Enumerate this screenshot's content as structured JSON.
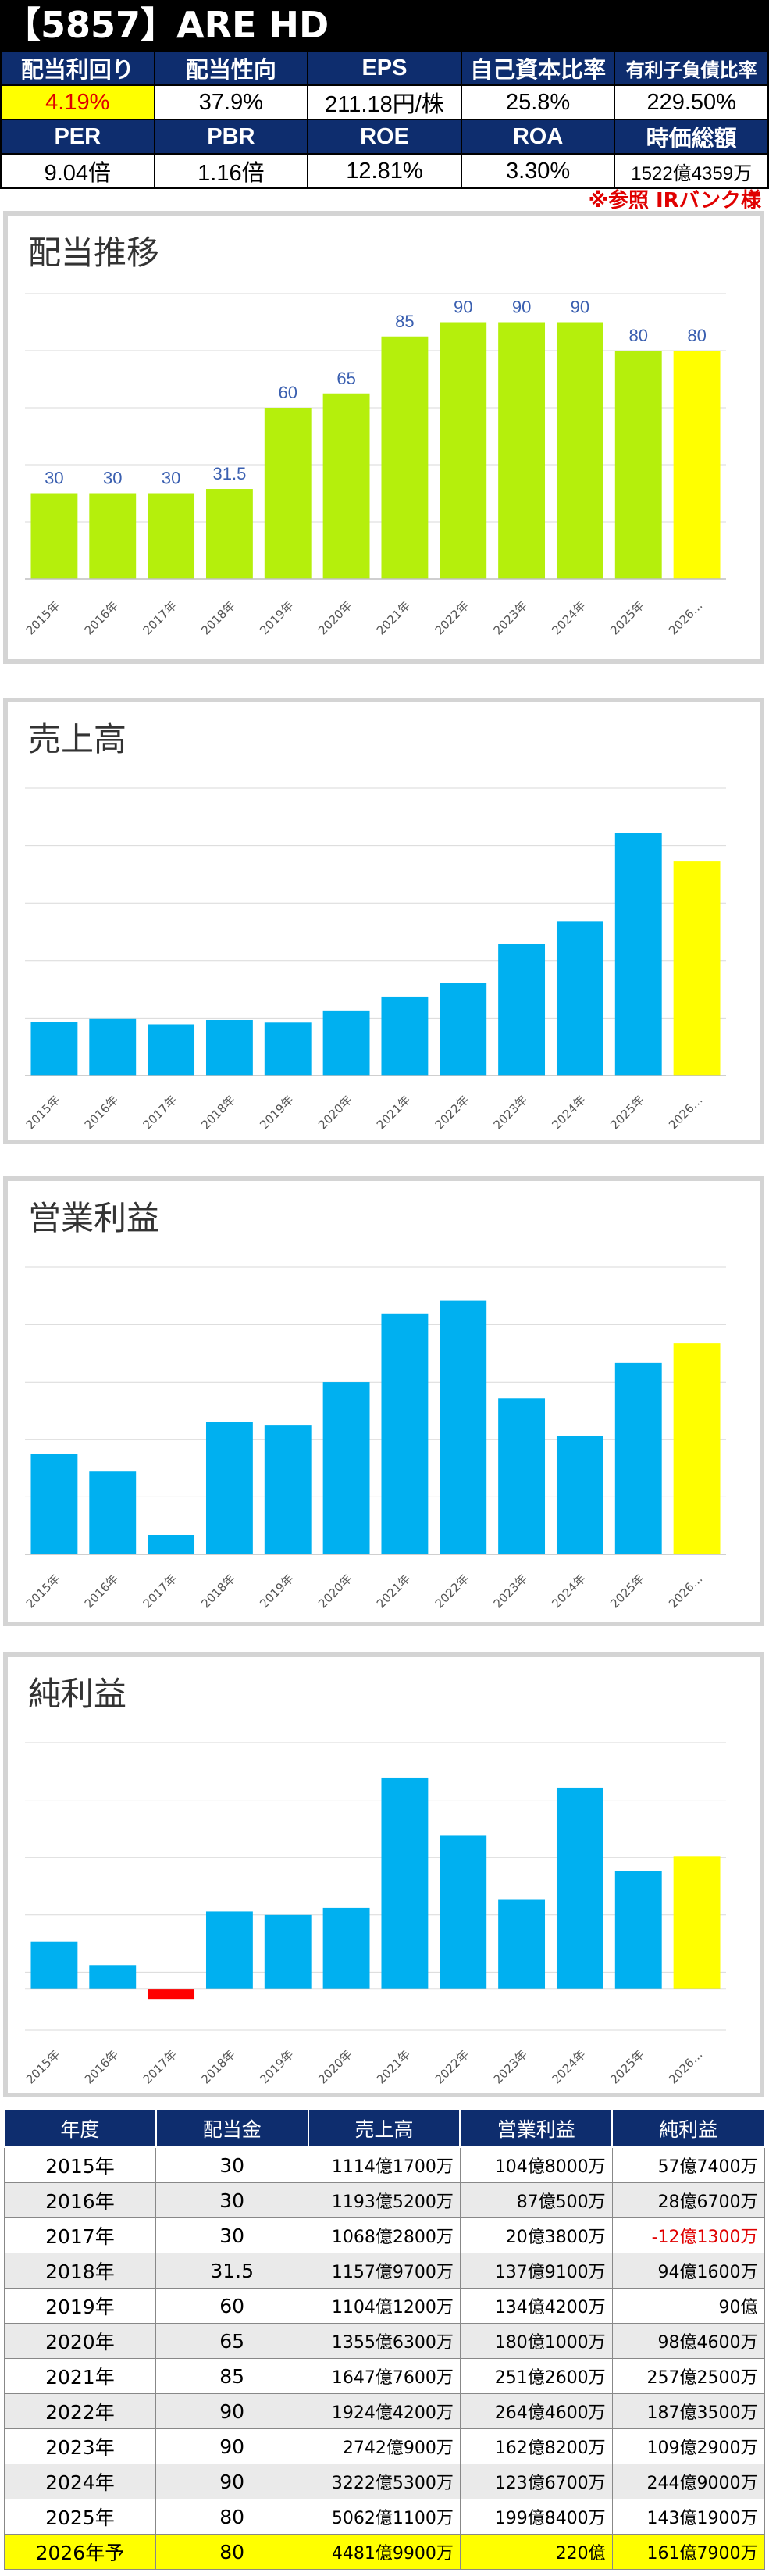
{
  "title": "【5857】ARE HD",
  "metrics_row1": {
    "headers": [
      "配当利回り",
      "配当性向",
      "EPS",
      "自己資本比率",
      "有利子負債比率"
    ],
    "values": [
      "4.19%",
      "37.9%",
      "211.18円/株",
      "25.8%",
      "229.50%"
    ]
  },
  "metrics_row2": {
    "headers": [
      "PER",
      "PBR",
      "ROE",
      "ROA",
      "時価総額"
    ],
    "values": [
      "9.04倍",
      "1.16倍",
      "12.81%",
      "3.30%",
      "1522億4359万"
    ]
  },
  "note": "※参照 IRバンク様",
  "colors": {
    "green": "#b5ef0c",
    "blue": "#00b0f0",
    "yellow": "#ffff00",
    "red": "#ff0000",
    "header": "#0e2d6e"
  },
  "chart_data": [
    {
      "type": "bar",
      "title": "配当推移",
      "categories": [
        "2015年",
        "2016年",
        "2017年",
        "2018年",
        "2019年",
        "2020年",
        "2021年",
        "2022年",
        "2023年",
        "2024年",
        "2025年",
        "2026…"
      ],
      "values": [
        30,
        30,
        30,
        31.5,
        60,
        65,
        85,
        90,
        90,
        90,
        80,
        80
      ],
      "data_labels": [
        "30",
        "30",
        "30",
        "31.5",
        "60",
        "65",
        "85",
        "90",
        "90",
        "90",
        "80",
        "80"
      ],
      "ylim": [
        0,
        100
      ],
      "grid": true,
      "bar_color": "#b5ef0c",
      "highlight_last_color": "#ffff00"
    },
    {
      "type": "bar",
      "title": "売上高",
      "categories": [
        "2015年",
        "2016年",
        "2017年",
        "2018年",
        "2019年",
        "2020年",
        "2021年",
        "2022年",
        "2023年",
        "2024年",
        "2025年",
        "2026…"
      ],
      "values": [
        111417,
        119352,
        106828,
        115797,
        110412,
        135563,
        164776,
        192442,
        274209,
        322253,
        506211,
        448199
      ],
      "unit": "百万円",
      "ylim": [
        0,
        600000
      ],
      "grid": true,
      "bar_color": "#00b0f0",
      "highlight_last_color": "#ffff00"
    },
    {
      "type": "bar",
      "title": "営業利益",
      "categories": [
        "2015年",
        "2016年",
        "2017年",
        "2018年",
        "2019年",
        "2020年",
        "2021年",
        "2022年",
        "2023年",
        "2024年",
        "2025年",
        "2026…"
      ],
      "values": [
        10480,
        8705,
        2038,
        13791,
        13442,
        18010,
        25126,
        26446,
        16282,
        12367,
        19984,
        22000
      ],
      "unit": "百万円",
      "ylim": [
        0,
        30000
      ],
      "grid": true,
      "bar_color": "#00b0f0",
      "highlight_last_color": "#ffff00"
    },
    {
      "type": "bar",
      "title": "純利益",
      "categories": [
        "2015年",
        "2016年",
        "2017年",
        "2018年",
        "2019年",
        "2020年",
        "2021年",
        "2022年",
        "2023年",
        "2024年",
        "2025年",
        "2026…"
      ],
      "values": [
        5774,
        2867,
        -1213,
        9416,
        9000,
        9846,
        25725,
        18735,
        10929,
        24490,
        14319,
        16179
      ],
      "unit": "百万円",
      "ylim": [
        -5000,
        30000
      ],
      "grid": true,
      "bar_color": "#00b0f0",
      "negative_color": "#ff0000",
      "highlight_last_color": "#ffff00"
    }
  ],
  "table": {
    "headers": [
      "年度",
      "配当金",
      "売上高",
      "営業利益",
      "純利益"
    ],
    "rows": [
      [
        "2015年",
        "30",
        "1114億1700万",
        "104億8000万",
        "57億7400万"
      ],
      [
        "2016年",
        "30",
        "1193億5200万",
        "87億500万",
        "28億6700万"
      ],
      [
        "2017年",
        "30",
        "1068億2800万",
        "20億3800万",
        "-12億1300万"
      ],
      [
        "2018年",
        "31.5",
        "1157億9700万",
        "137億9100万",
        "94億1600万"
      ],
      [
        "2019年",
        "60",
        "1104億1200万",
        "134億4200万",
        "90億"
      ],
      [
        "2020年",
        "65",
        "1355億6300万",
        "180億1000万",
        "98億4600万"
      ],
      [
        "2021年",
        "85",
        "1647億7600万",
        "251億2600万",
        "257億2500万"
      ],
      [
        "2022年",
        "90",
        "1924億4200万",
        "264億4600万",
        "187億3500万"
      ],
      [
        "2023年",
        "90",
        "2742億900万",
        "162億8200万",
        "109億2900万"
      ],
      [
        "2024年",
        "90",
        "3222億5300万",
        "123億6700万",
        "244億9000万"
      ],
      [
        "2025年",
        "80",
        "5062億1100万",
        "199億8400万",
        "143億1900万"
      ],
      [
        "2026年予",
        "80",
        "4481億9900万",
        "220億",
        "161億7900万"
      ]
    ]
  }
}
